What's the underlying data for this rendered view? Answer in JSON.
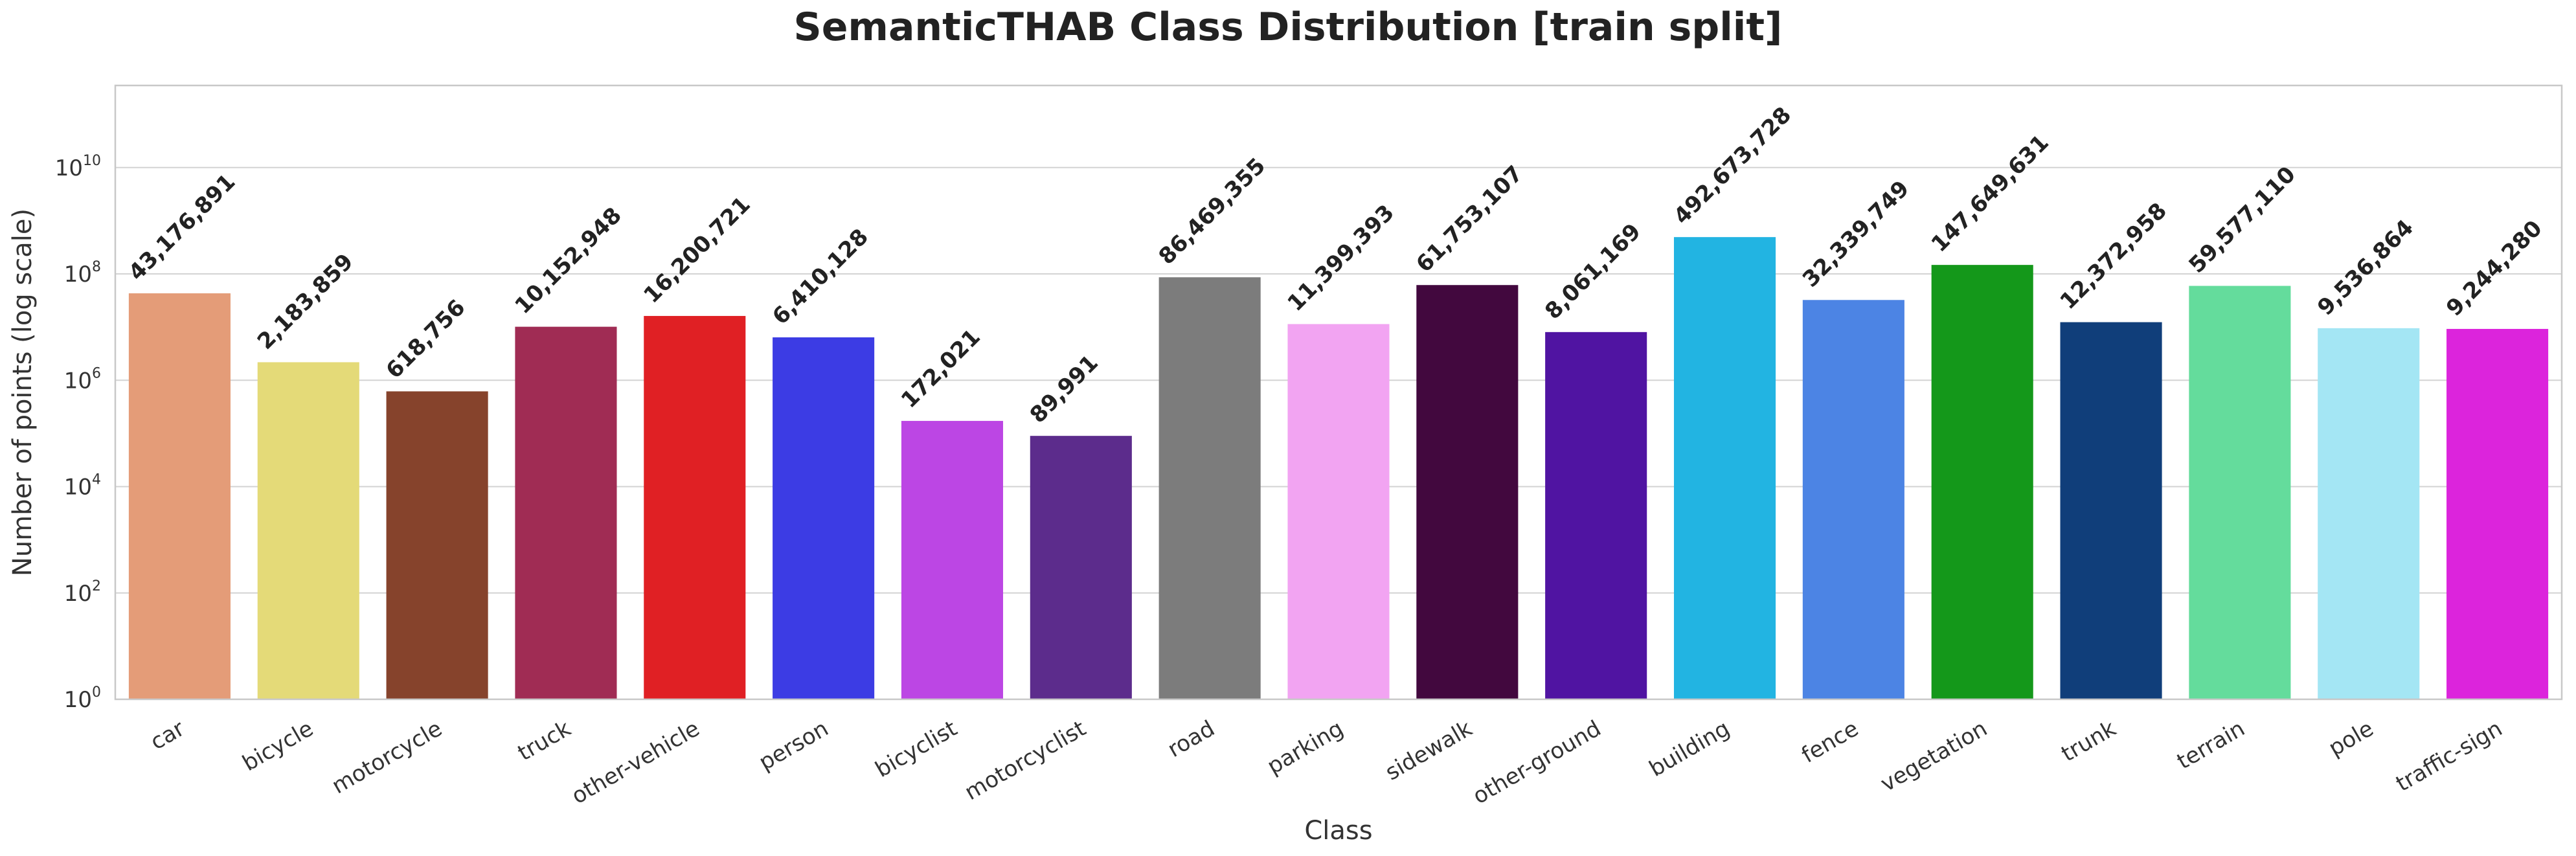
{
  "chart_data": {
    "type": "bar",
    "title": "SemanticTHAB Class Distribution [train split]",
    "xlabel": "Class",
    "ylabel": "Number of points (log scale)",
    "yscale": "log",
    "ylim": [
      1,
      350000000000.0
    ],
    "grid": true,
    "yticks": [
      {
        "value": 1,
        "base": "10",
        "exp": "0"
      },
      {
        "value": 100,
        "base": "10",
        "exp": "2"
      },
      {
        "value": 10000,
        "base": "10",
        "exp": "4"
      },
      {
        "value": 1000000,
        "base": "10",
        "exp": "6"
      },
      {
        "value": 100000000,
        "base": "10",
        "exp": "8"
      },
      {
        "value": 10000000000,
        "base": "10",
        "exp": "10"
      }
    ],
    "categories": [
      "car",
      "bicycle",
      "motorcycle",
      "truck",
      "other-vehicle",
      "person",
      "bicyclist",
      "motorcyclist",
      "road",
      "parking",
      "sidewalk",
      "other-ground",
      "building",
      "fence",
      "vegetation",
      "trunk",
      "terrain",
      "pole",
      "traffic-sign"
    ],
    "values": [
      43176891,
      2183859,
      618756,
      10152948,
      16200721,
      6410128,
      172021,
      89991,
      86469355,
      11399393,
      61753107,
      8061169,
      492673728,
      32339749,
      147649631,
      12372958,
      59577110,
      9536864,
      9244280
    ],
    "value_labels": [
      "43,176,891",
      "2,183,859",
      "618,756",
      "10,152,948",
      "16,200,721",
      "6,410,128",
      "172,021",
      "89,991",
      "86,469,355",
      "11,399,393",
      "61,753,107",
      "8,061,169",
      "492,673,728",
      "32,339,749",
      "147,649,631",
      "12,372,958",
      "59,577,110",
      "9,536,864",
      "9,244,280"
    ],
    "colors": [
      "#E49C78",
      "#E4DA78",
      "#86432C",
      "#A02C54",
      "#E02024",
      "#3C3CE4",
      "#BC46E4",
      "#5C2C8C",
      "#7C7C7C",
      "#F2A4F2",
      "#42083E",
      "#5014A2",
      "#22B4E2",
      "#4C84E4",
      "#14981A",
      "#103E7A",
      "#64DC9C",
      "#A4E6F4",
      "#DC24DC"
    ]
  }
}
